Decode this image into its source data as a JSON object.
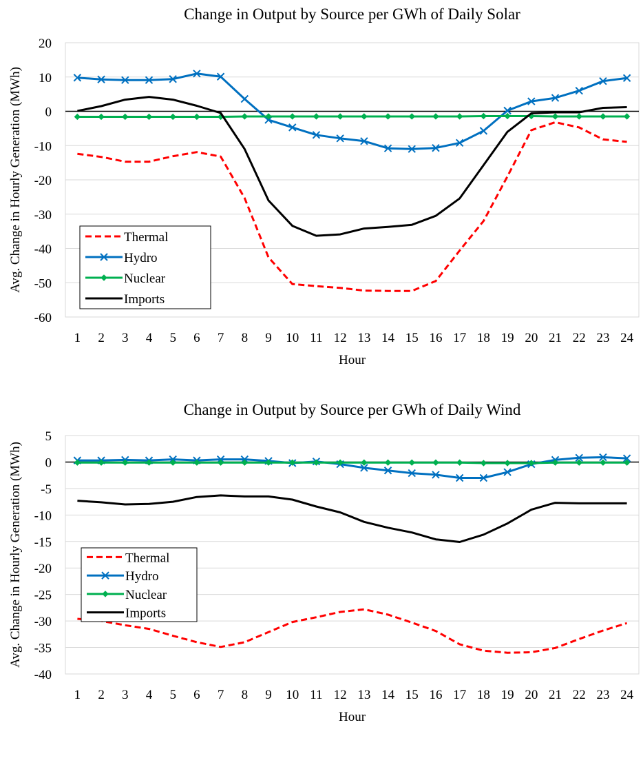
{
  "chart_data": [
    {
      "type": "line",
      "title": "Change in Output by Source per GWh of Daily Solar",
      "xlabel": "Hour",
      "ylabel": "Avg. Change in Hourly Generation (MWh)",
      "categories": [
        "1",
        "2",
        "3",
        "4",
        "5",
        "6",
        "7",
        "8",
        "9",
        "10",
        "11",
        "12",
        "13",
        "14",
        "15",
        "16",
        "17",
        "18",
        "19",
        "20",
        "21",
        "22",
        "23",
        "24"
      ],
      "ylim": [
        -60,
        20
      ],
      "yticks": [
        20,
        10,
        0,
        -10,
        -20,
        -30,
        -40,
        -50,
        -60
      ],
      "grid": true,
      "legend_position": "bottom-left",
      "series": [
        {
          "name": "Thermal",
          "color": "#ff0000",
          "style": "dashed",
          "marker": "none",
          "values": [
            -12.4,
            -13.3,
            -14.7,
            -14.7,
            -13.1,
            -11.9,
            -13.2,
            -25.3,
            -42.6,
            -50.4,
            -51.0,
            -51.5,
            -52.3,
            -52.4,
            -52.4,
            -49.5,
            -40.6,
            -32.0,
            -19.0,
            -5.5,
            -3.2,
            -4.7,
            -8.2,
            -8.9
          ]
        },
        {
          "name": "Hydro",
          "color": "#0070c0",
          "style": "solid",
          "marker": "x",
          "values": [
            9.8,
            9.3,
            9.1,
            9.1,
            9.4,
            11.0,
            10.1,
            3.6,
            -2.5,
            -4.7,
            -6.9,
            -7.9,
            -8.7,
            -10.8,
            -11.0,
            -10.7,
            -9.2,
            -5.7,
            0.2,
            2.9,
            3.9,
            6.0,
            8.8,
            9.7
          ]
        },
        {
          "name": "Nuclear",
          "color": "#00b050",
          "style": "solid",
          "marker": "diamond",
          "values": [
            -1.6,
            -1.6,
            -1.6,
            -1.6,
            -1.6,
            -1.6,
            -1.6,
            -1.5,
            -1.5,
            -1.5,
            -1.5,
            -1.5,
            -1.5,
            -1.5,
            -1.5,
            -1.5,
            -1.5,
            -1.4,
            -1.4,
            -1.4,
            -1.5,
            -1.5,
            -1.5,
            -1.5
          ]
        },
        {
          "name": "Imports",
          "color": "#000000",
          "style": "solid",
          "marker": "none",
          "values": [
            0.1,
            1.5,
            3.4,
            4.2,
            3.4,
            1.6,
            -0.5,
            -11.0,
            -26.0,
            -33.4,
            -36.3,
            -35.9,
            -34.2,
            -33.7,
            -33.1,
            -30.5,
            -25.4,
            -15.7,
            -6.0,
            -0.6,
            -0.3,
            -0.3,
            1.0,
            1.2
          ]
        }
      ]
    },
    {
      "type": "line",
      "title": "Change in Output by Source per GWh of Daily Wind",
      "xlabel": "Hour",
      "ylabel": "Avg. Change in Hourly Generation (MWh)",
      "categories": [
        "1",
        "2",
        "3",
        "4",
        "5",
        "6",
        "7",
        "8",
        "9",
        "10",
        "11",
        "12",
        "13",
        "14",
        "15",
        "16",
        "17",
        "18",
        "19",
        "20",
        "21",
        "22",
        "23",
        "24"
      ],
      "ylim": [
        -40,
        5
      ],
      "yticks": [
        5,
        0,
        -5,
        -10,
        -15,
        -20,
        -25,
        -30,
        -35,
        -40
      ],
      "grid": true,
      "legend_position": "left",
      "series": [
        {
          "name": "Thermal",
          "color": "#ff0000",
          "style": "dashed",
          "marker": "none",
          "values": [
            -29.6,
            -30.0,
            -30.8,
            -31.5,
            -32.8,
            -34.0,
            -34.9,
            -34.0,
            -32.1,
            -30.2,
            -29.3,
            -28.3,
            -27.8,
            -28.8,
            -30.3,
            -31.9,
            -34.4,
            -35.6,
            -36.0,
            -35.9,
            -35.1,
            -33.4,
            -31.8,
            -30.4
          ]
        },
        {
          "name": "Hydro",
          "color": "#0070c0",
          "style": "solid",
          "marker": "x",
          "values": [
            0.3,
            0.3,
            0.4,
            0.3,
            0.5,
            0.3,
            0.5,
            0.5,
            0.2,
            -0.2,
            0.1,
            -0.4,
            -1.1,
            -1.6,
            -2.1,
            -2.4,
            -3.0,
            -3.0,
            -1.9,
            -0.4,
            0.4,
            0.8,
            0.9,
            0.7
          ]
        },
        {
          "name": "Nuclear",
          "color": "#00b050",
          "style": "solid",
          "marker": "diamond",
          "values": [
            -0.1,
            -0.1,
            -0.1,
            -0.1,
            -0.1,
            -0.1,
            -0.1,
            -0.1,
            -0.1,
            -0.1,
            -0.1,
            -0.1,
            -0.1,
            -0.1,
            -0.1,
            -0.1,
            -0.1,
            -0.2,
            -0.2,
            -0.2,
            -0.1,
            -0.1,
            -0.1,
            -0.1
          ]
        },
        {
          "name": "Imports",
          "color": "#000000",
          "style": "solid",
          "marker": "none",
          "values": [
            -7.3,
            -7.6,
            -8.0,
            -7.9,
            -7.5,
            -6.6,
            -6.3,
            -6.5,
            -6.5,
            -7.1,
            -8.4,
            -9.5,
            -11.3,
            -12.4,
            -13.3,
            -14.6,
            -15.1,
            -13.7,
            -11.6,
            -9.0,
            -7.7,
            -7.8,
            -7.8,
            -7.8
          ]
        }
      ]
    }
  ]
}
